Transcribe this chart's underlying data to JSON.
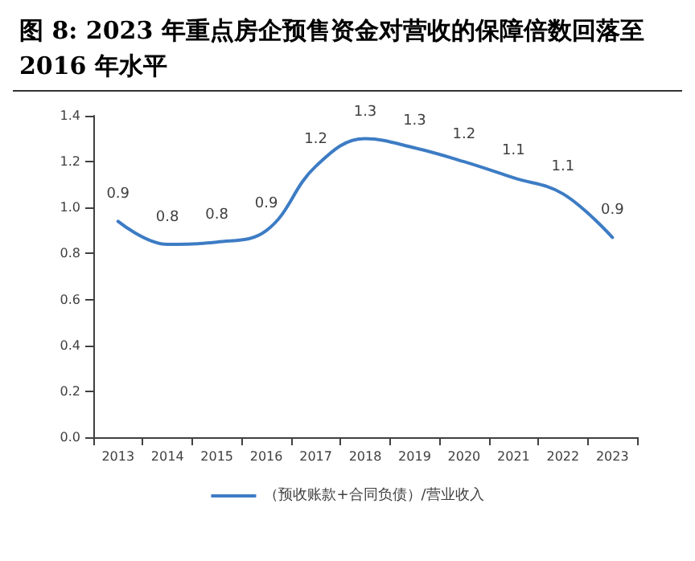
{
  "chart_data": {
    "type": "line",
    "title": "图 8:  2023 年重点房企预售资金对营收的保障倍数回落至 2016 年水平",
    "categories": [
      "2013",
      "2014",
      "2015",
      "2016",
      "2017",
      "2018",
      "2019",
      "2020",
      "2021",
      "2022",
      "2023"
    ],
    "series": [
      {
        "name": "（预收账款+合同负债）/营业收入",
        "color": "#3d7cc4",
        "values": [
          0.94,
          0.84,
          0.85,
          0.9,
          1.18,
          1.3,
          1.26,
          1.2,
          1.13,
          1.06,
          0.87
        ],
        "value_labels": [
          "0.9",
          "0.8",
          "0.8",
          "0.9",
          "1.2",
          "1.3",
          "1.3",
          "1.2",
          "1.1",
          "1.1",
          "0.9"
        ]
      }
    ],
    "ylim": [
      0,
      1.4
    ],
    "yticks": [
      {
        "value": 0,
        "label": "0.0"
      },
      0.2,
      0.4,
      0.6,
      0.8,
      {
        "value": 1,
        "label": "1.0"
      },
      1.2,
      1.4
    ],
    "grid": false,
    "legend": "bottom",
    "marker": "none",
    "line_style": "solid"
  }
}
